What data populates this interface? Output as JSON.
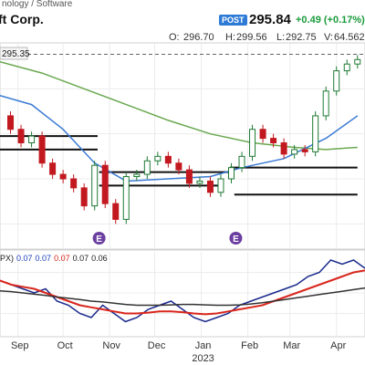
{
  "header": {
    "sector_text": "nology / Software",
    "company_text": "ft Corp.",
    "post_badge": "POST",
    "price": "295.84",
    "change": "+0.49 (+0.17%)",
    "ohlc_open_label": "O:",
    "ohlc_open": "296.70",
    "ohlc_high_label": "H:",
    "ohlc_high": "299.56",
    "ohlc_low_label": "L:",
    "ohlc_low": "292.75",
    "ohlc_volume_label": "V:",
    "ohlc_volume": "64.562"
  },
  "chart_data": [
    {
      "type": "candlestick",
      "price_label": "295.35",
      "ylim": [
        210,
        300
      ],
      "x_ticks": [
        "Sep",
        "Oct",
        "Nov",
        "Dec",
        "Jan",
        "Feb",
        "Mar",
        "Apr"
      ],
      "year_label": "2023",
      "event_markers": [
        "E",
        "E"
      ],
      "reference_line": 295.35,
      "horizontal_levels": [
        {
          "value": 259,
          "from": "2022-08-20",
          "to": "2022-10-24"
        },
        {
          "value": 253,
          "from": "2022-08-20",
          "to": "2022-10-24"
        },
        {
          "value": 243,
          "from": "2022-10-25",
          "to": "2023-01-20"
        },
        {
          "value": 237,
          "from": "2022-10-25",
          "to": "2023-01-13"
        },
        {
          "value": 245,
          "from": "2023-01-20",
          "to": "2023-04-15"
        },
        {
          "value": 233,
          "from": "2023-01-23",
          "to": "2023-04-15"
        }
      ],
      "close_points": [
        {
          "date": "2022-08-20",
          "close": 268
        },
        {
          "date": "2022-08-27",
          "close": 262
        },
        {
          "date": "2022-09-03",
          "close": 256
        },
        {
          "date": "2022-09-10",
          "close": 259
        },
        {
          "date": "2022-09-17",
          "close": 247
        },
        {
          "date": "2022-09-24",
          "close": 242
        },
        {
          "date": "2022-10-01",
          "close": 240
        },
        {
          "date": "2022-10-08",
          "close": 236
        },
        {
          "date": "2022-10-15",
          "close": 228
        },
        {
          "date": "2022-10-22",
          "close": 246
        },
        {
          "date": "2022-10-29",
          "close": 229
        },
        {
          "date": "2022-11-05",
          "close": 222
        },
        {
          "date": "2022-11-12",
          "close": 241
        },
        {
          "date": "2022-11-19",
          "close": 242
        },
        {
          "date": "2022-11-26",
          "close": 248
        },
        {
          "date": "2022-12-03",
          "close": 250
        },
        {
          "date": "2022-12-10",
          "close": 247
        },
        {
          "date": "2022-12-17",
          "close": 244
        },
        {
          "date": "2022-12-24",
          "close": 238
        },
        {
          "date": "2022-12-31",
          "close": 239
        },
        {
          "date": "2023-01-07",
          "close": 234
        },
        {
          "date": "2023-01-14",
          "close": 240
        },
        {
          "date": "2023-01-21",
          "close": 245
        },
        {
          "date": "2023-01-28",
          "close": 250
        },
        {
          "date": "2023-02-04",
          "close": 262
        },
        {
          "date": "2023-02-11",
          "close": 258
        },
        {
          "date": "2023-02-18",
          "close": 256
        },
        {
          "date": "2023-02-25",
          "close": 251
        },
        {
          "date": "2023-03-04",
          "close": 253
        },
        {
          "date": "2023-03-11",
          "close": 252
        },
        {
          "date": "2023-03-18",
          "close": 268
        },
        {
          "date": "2023-03-25",
          "close": 279
        },
        {
          "date": "2023-04-01",
          "close": 288
        },
        {
          "date": "2023-04-08",
          "close": 291
        },
        {
          "date": "2023-04-15",
          "close": 293
        }
      ],
      "ma_short": [
        {
          "date": "2022-08-20",
          "v": 277
        },
        {
          "date": "2022-09-10",
          "v": 273
        },
        {
          "date": "2022-10-01",
          "v": 262
        },
        {
          "date": "2022-10-22",
          "v": 247
        },
        {
          "date": "2022-11-12",
          "v": 239
        },
        {
          "date": "2022-12-10",
          "v": 240
        },
        {
          "date": "2023-01-07",
          "v": 241
        },
        {
          "date": "2023-01-28",
          "v": 245
        },
        {
          "date": "2023-02-25",
          "v": 249
        },
        {
          "date": "2023-03-25",
          "v": 258
        },
        {
          "date": "2023-04-15",
          "v": 268
        }
      ],
      "ma_long": [
        {
          "date": "2022-08-20",
          "v": 292
        },
        {
          "date": "2022-09-17",
          "v": 287
        },
        {
          "date": "2022-10-15",
          "v": 280
        },
        {
          "date": "2022-11-12",
          "v": 273
        },
        {
          "date": "2022-12-10",
          "v": 266
        },
        {
          "date": "2023-01-07",
          "v": 260
        },
        {
          "date": "2023-02-04",
          "v": 256
        },
        {
          "date": "2023-03-04",
          "v": 254
        },
        {
          "date": "2023-03-25",
          "v": 253
        },
        {
          "date": "2023-04-15",
          "v": 254
        }
      ]
    },
    {
      "type": "line",
      "indicator_label_prefix": "PX)",
      "indicator_values": [
        "0.07",
        "0.07",
        "0.07",
        "0.07",
        "0.06"
      ],
      "indicator_value_colors": [
        "#1f3fbf",
        "#1f3fbf",
        "#d9261c",
        "#222222",
        "#222222"
      ],
      "ylim": [
        -0.1,
        0.1
      ],
      "series": [
        {
          "color": "#1a2a8c",
          "values": [
            0.03,
            0.02,
            0.01,
            0.0,
            0.01,
            -0.02,
            -0.03,
            -0.05,
            -0.06,
            -0.03,
            -0.05,
            -0.07,
            -0.06,
            -0.04,
            -0.03,
            -0.02,
            -0.04,
            -0.06,
            -0.07,
            -0.06,
            -0.05,
            -0.03,
            -0.02,
            -0.01,
            0.0,
            0.01,
            0.02,
            0.04,
            0.05,
            0.08,
            0.07,
            0.08,
            0.06
          ]
        },
        {
          "color": "#d9261c",
          "values": [
            0.03,
            0.02,
            0.015,
            0.01,
            0.0,
            -0.01,
            -0.02,
            -0.03,
            -0.035,
            -0.04,
            -0.045,
            -0.05,
            -0.05,
            -0.048,
            -0.045,
            -0.045,
            -0.047,
            -0.05,
            -0.052,
            -0.05,
            -0.045,
            -0.04,
            -0.035,
            -0.03,
            -0.02,
            -0.01,
            0.0,
            0.01,
            0.02,
            0.03,
            0.04,
            0.05,
            0.055
          ]
        },
        {
          "color": "#333333",
          "values": [
            0.005,
            0.003,
            0.0,
            -0.003,
            -0.006,
            -0.01,
            -0.013,
            -0.016,
            -0.02,
            -0.022,
            -0.025,
            -0.028,
            -0.03,
            -0.03,
            -0.03,
            -0.029,
            -0.028,
            -0.028,
            -0.029,
            -0.03,
            -0.03,
            -0.029,
            -0.027,
            -0.024,
            -0.02,
            -0.016,
            -0.012,
            -0.008,
            -0.004,
            0.0,
            0.004,
            0.008,
            0.012
          ]
        }
      ]
    }
  ],
  "colors": {
    "up": "#1e7a34",
    "down": "#c2181f",
    "event_marker": "#6b3fa0",
    "ma_short": "#3b7bd4",
    "ma_long": "#6aa84f"
  }
}
